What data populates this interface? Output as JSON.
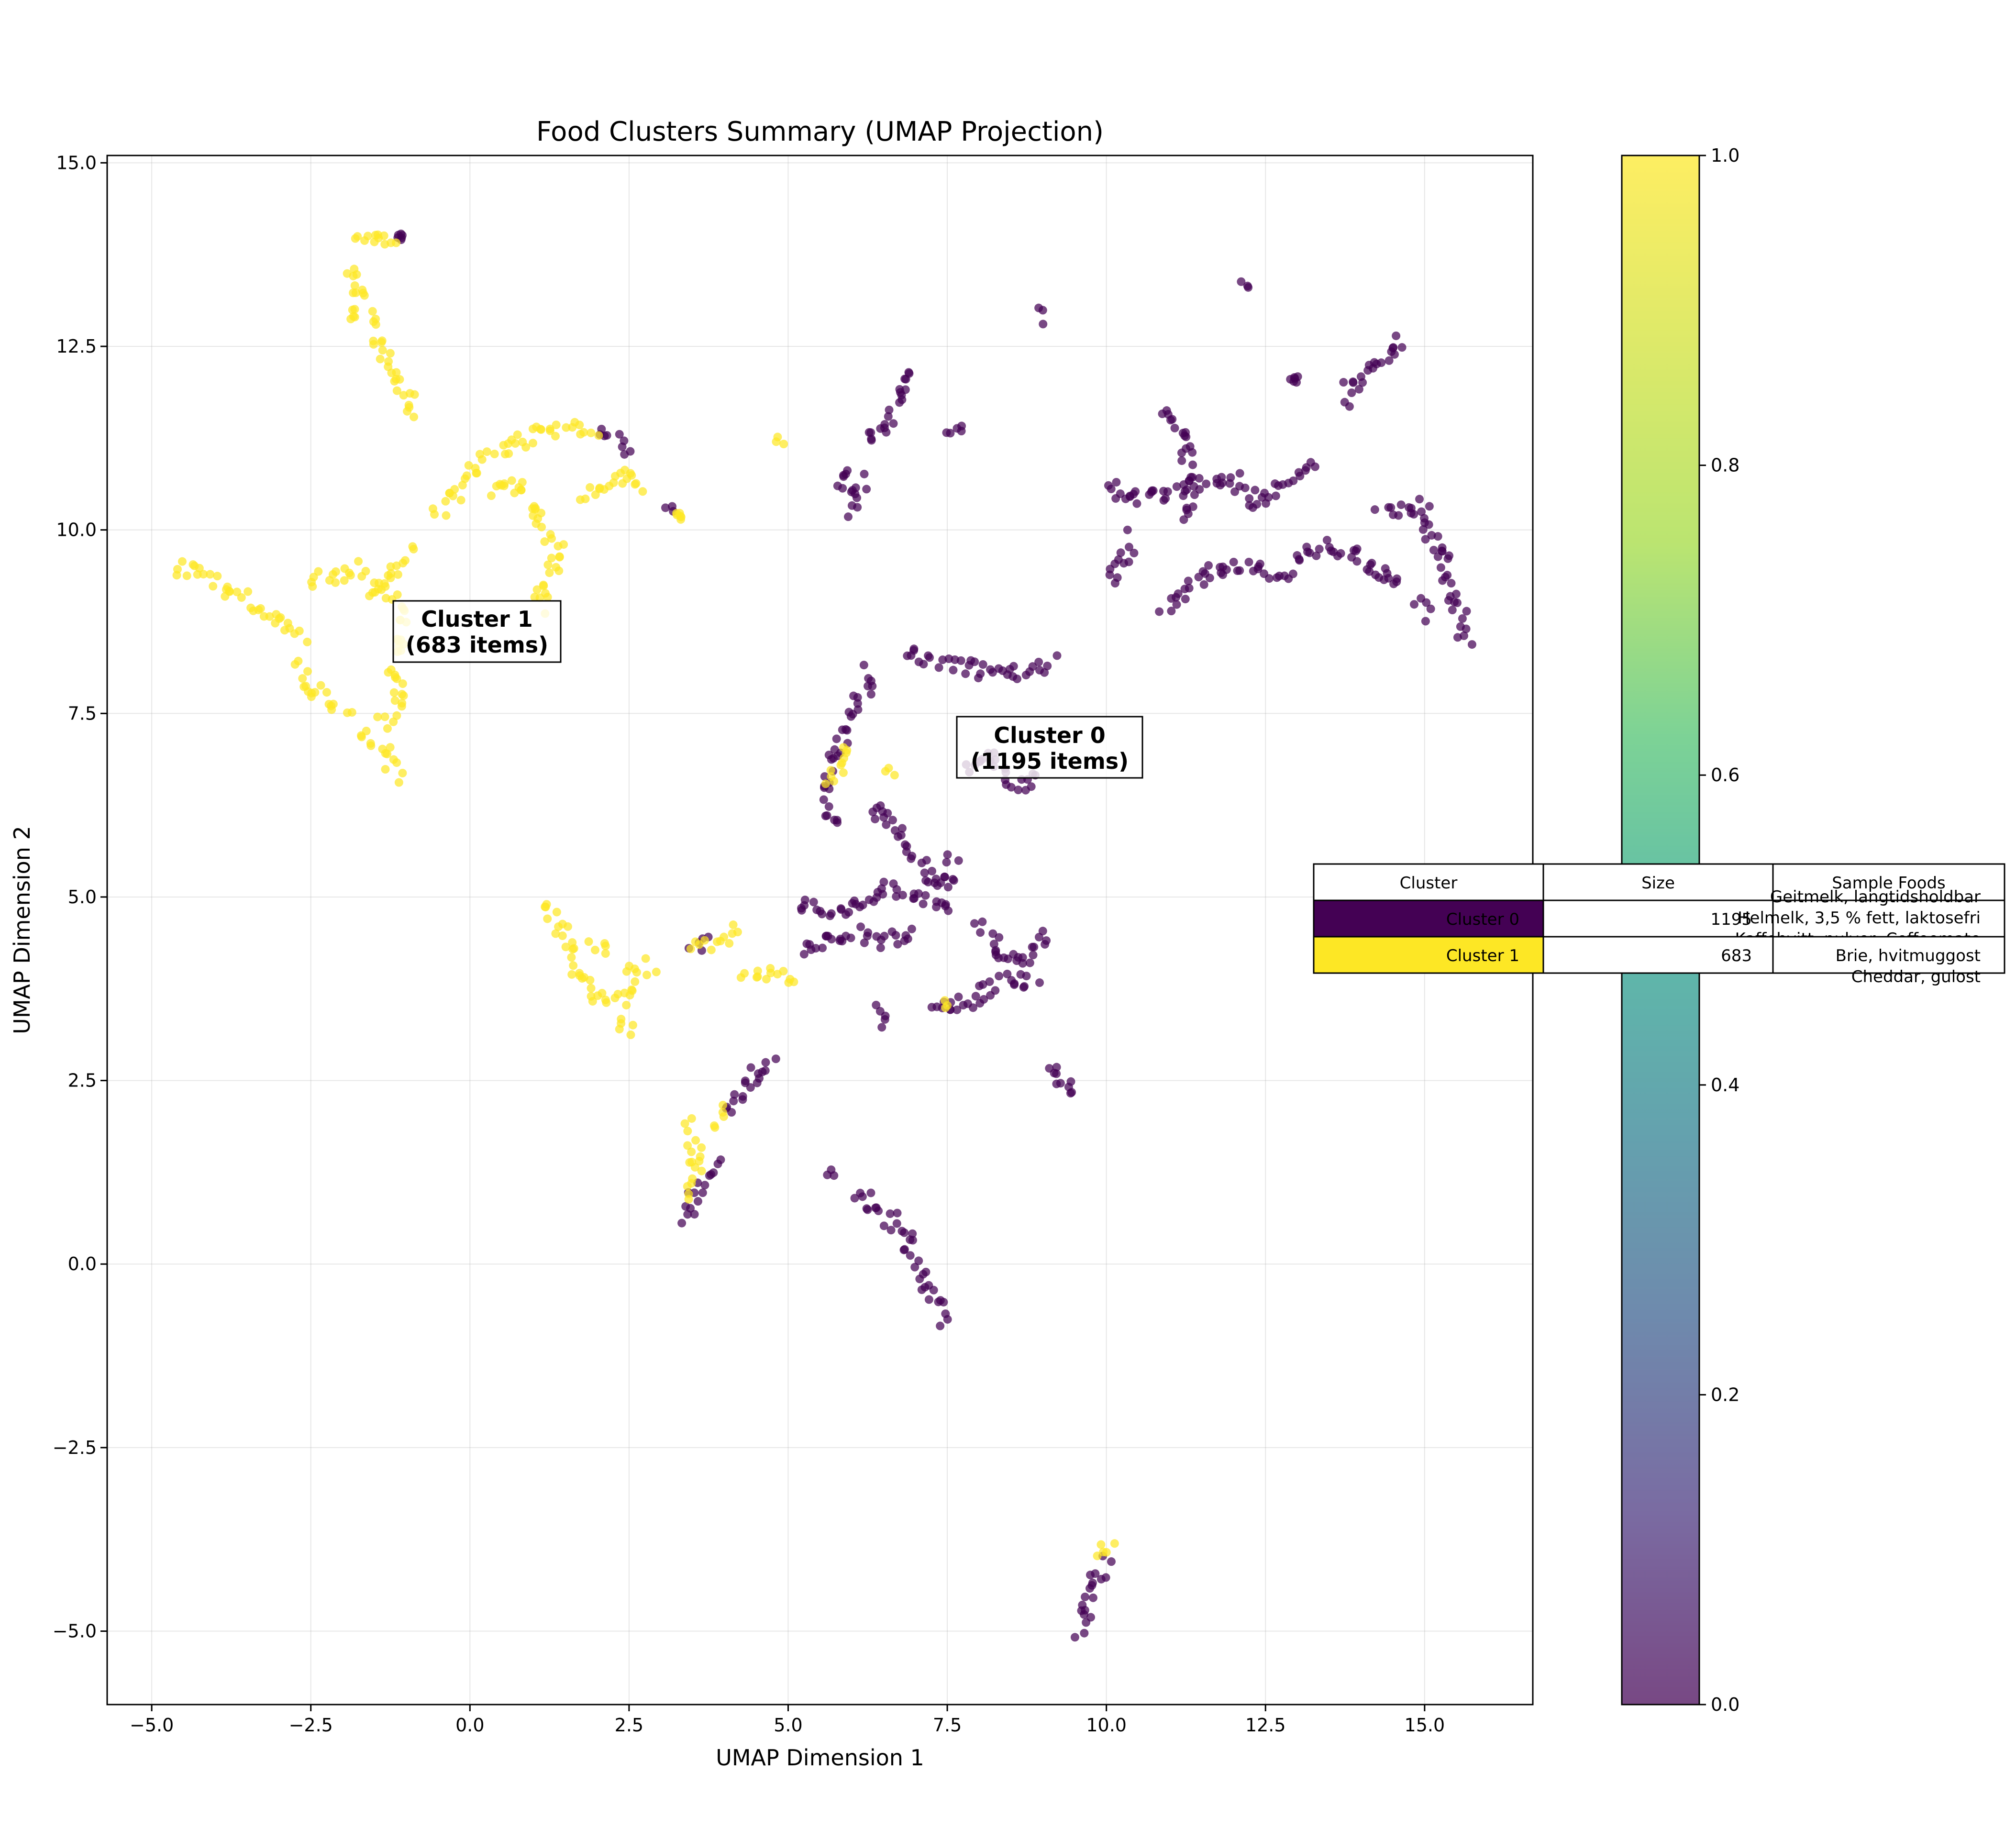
{
  "chart_data": {
    "type": "scatter",
    "title": "Food Clusters Summary (UMAP Projection)",
    "xlabel": "UMAP Dimension 1",
    "ylabel": "UMAP Dimension 2",
    "xlim": [
      -5.7,
      16.7
    ],
    "ylim": [
      -6.0,
      15.1
    ],
    "xticks": [
      -5.0,
      -2.5,
      0.0,
      2.5,
      5.0,
      7.5,
      10.0,
      12.5,
      15.0
    ],
    "xtick_labels": [
      "−5.0",
      "−2.5",
      "0.0",
      "2.5",
      "5.0",
      "7.5",
      "10.0",
      "12.5",
      "15.0"
    ],
    "yticks": [
      -5.0,
      -2.5,
      0.0,
      2.5,
      5.0,
      7.5,
      10.0,
      12.5,
      15.0
    ],
    "ytick_labels": [
      "−5.0",
      "−2.5",
      "0.0",
      "2.5",
      "5.0",
      "7.5",
      "10.0",
      "12.5",
      "15.0"
    ],
    "grid": true,
    "colormap": "viridis",
    "colorbar": {
      "ticks": [
        0.0,
        0.2,
        0.4,
        0.6,
        0.8,
        1.0
      ],
      "tick_labels": [
        "0.0",
        "0.2",
        "0.4",
        "0.6",
        "0.8",
        "1.0"
      ]
    },
    "series": [
      {
        "cluster": 0,
        "color": "#440154",
        "paths": [
          [
            [
              6.3,
              8.1
            ],
            [
              6.0,
              7.4
            ],
            [
              5.7,
              6.9
            ],
            [
              5.6,
              6.4
            ],
            [
              5.7,
              5.9
            ]
          ],
          [
            [
              6.9,
              8.3
            ],
            [
              7.5,
              8.2
            ],
            [
              8.2,
              8.05
            ],
            [
              8.8,
              8.05
            ],
            [
              9.2,
              8.2
            ]
          ],
          [
            [
              6.3,
              6.3
            ],
            [
              6.6,
              6.0
            ],
            [
              6.9,
              5.6
            ],
            [
              7.2,
              5.3
            ],
            [
              7.5,
              5.1
            ],
            [
              7.6,
              5.6
            ]
          ],
          [
            [
              7.8,
              6.7
            ],
            [
              8.2,
              6.9
            ],
            [
              8.6,
              6.5
            ],
            [
              9.0,
              6.6
            ]
          ],
          [
            [
              5.1,
              4.9
            ],
            [
              5.6,
              4.8
            ],
            [
              6.1,
              4.9
            ],
            [
              6.6,
              5.1
            ],
            [
              7.1,
              5.0
            ],
            [
              7.6,
              4.8
            ]
          ],
          [
            [
              5.2,
              4.2
            ],
            [
              5.6,
              4.4
            ],
            [
              6.1,
              4.5
            ],
            [
              6.6,
              4.4
            ],
            [
              7.0,
              4.5
            ]
          ],
          [
            [
              7.2,
              3.6
            ],
            [
              7.7,
              3.55
            ],
            [
              8.1,
              3.7
            ],
            [
              8.5,
              3.9
            ],
            [
              8.9,
              3.8
            ]
          ],
          [
            [
              8.0,
              4.6
            ],
            [
              8.3,
              4.3
            ],
            [
              8.6,
              4.0
            ],
            [
              8.9,
              4.4
            ],
            [
              9.1,
              4.5
            ]
          ],
          [
            [
              6.4,
              3.3
            ],
            [
              6.5,
              3.6
            ]
          ],
          [
            [
              4.0,
              2.1
            ],
            [
              4.4,
              2.5
            ],
            [
              4.8,
              2.85
            ]
          ],
          [
            [
              3.4,
              0.6
            ],
            [
              3.6,
              1.1
            ],
            [
              3.9,
              1.4
            ]
          ],
          [
            [
              5.6,
              1.25
            ],
            [
              5.8,
              1.2
            ]
          ],
          [
            [
              6.1,
              1.0
            ],
            [
              6.4,
              0.7
            ],
            [
              6.8,
              0.5
            ],
            [
              7.0,
              0.0
            ],
            [
              7.3,
              -0.5
            ],
            [
              7.5,
              -0.85
            ]
          ],
          [
            [
              9.1,
              2.7
            ],
            [
              9.3,
              2.5
            ],
            [
              9.55,
              2.3
            ]
          ],
          [
            [
              9.55,
              -5.05
            ],
            [
              9.7,
              -4.7
            ],
            [
              9.85,
              -4.3
            ],
            [
              10.0,
              -3.95
            ]
          ],
          [
            [
              6.2,
              11.3
            ],
            [
              6.5,
              11.35
            ],
            [
              6.9,
              12.05
            ],
            [
              7.0,
              12.1
            ]
          ],
          [
            [
              7.5,
              11.3
            ],
            [
              7.8,
              11.35
            ]
          ],
          [
            [
              5.8,
              10.85
            ],
            [
              5.95,
              10.5
            ],
            [
              6.05,
              10.2
            ]
          ],
          [
            [
              6.0,
              10.6
            ],
            [
              6.3,
              10.7
            ]
          ],
          [
            [
              9.0,
              12.85
            ],
            [
              9.05,
              12.95
            ]
          ],
          [
            [
              12.1,
              13.3
            ],
            [
              12.25,
              13.15
            ]
          ],
          [
            [
              12.95,
              12.05
            ]
          ],
          [
            [
              13.8,
              12.0
            ],
            [
              14.1,
              12.2
            ],
            [
              14.4,
              12.4
            ],
            [
              14.7,
              12.65
            ]
          ],
          [
            [
              13.8,
              11.7
            ],
            [
              14.0,
              11.85
            ]
          ],
          [
            [
              10.0,
              10.6
            ],
            [
              10.5,
              10.4
            ],
            [
              11.0,
              10.5
            ],
            [
              11.5,
              10.6
            ],
            [
              12.0,
              10.7
            ],
            [
              12.4,
              10.3
            ],
            [
              12.8,
              10.6
            ],
            [
              13.3,
              10.9
            ]
          ],
          [
            [
              10.9,
              11.7
            ],
            [
              11.2,
              11.3
            ],
            [
              11.3,
              10.6
            ],
            [
              11.2,
              10.1
            ]
          ],
          [
            [
              10.4,
              9.9
            ],
            [
              10.2,
              9.5
            ],
            [
              10.0,
              9.3
            ]
          ],
          [
            [
              10.9,
              8.95
            ],
            [
              11.4,
              9.3
            ],
            [
              11.9,
              9.5
            ],
            [
              12.4,
              9.45
            ],
            [
              12.9,
              9.4
            ]
          ],
          [
            [
              12.9,
              9.5
            ],
            [
              13.4,
              9.8
            ],
            [
              13.9,
              9.7
            ],
            [
              14.3,
              9.45
            ],
            [
              14.7,
              9.2
            ]
          ],
          [
            [
              14.3,
              10.3
            ],
            [
              14.7,
              10.25
            ],
            [
              14.9,
              10.35
            ]
          ],
          [
            [
              15.0,
              10.4
            ],
            [
              15.1,
              10.0
            ],
            [
              15.3,
              9.5
            ],
            [
              15.5,
              9.0
            ],
            [
              15.7,
              8.4
            ]
          ],
          [
            [
              14.9,
              9.0
            ],
            [
              15.1,
              8.8
            ]
          ],
          [
            [
              2.1,
              11.4
            ],
            [
              2.5,
              11.0
            ]
          ],
          [
            [
              3.15,
              10.3
            ],
            [
              3.2,
              10.2
            ]
          ],
          [
            [
              -1.1,
              14.0
            ]
          ],
          [
            [
              3.5,
              4.3
            ],
            [
              3.8,
              4.4
            ]
          ]
        ]
      },
      {
        "cluster": 1,
        "color": "#fde725",
        "paths": [
          [
            [
              -1.8,
              14.05
            ],
            [
              -1.6,
              13.9
            ],
            [
              -1.3,
              14.0
            ],
            [
              -1.15,
              13.95
            ]
          ],
          [
            [
              -1.9,
              13.6
            ],
            [
              -1.7,
              13.3
            ],
            [
              -1.8,
              12.95
            ],
            [
              -2.0,
              13.0
            ]
          ],
          [
            [
              -1.6,
              12.9
            ],
            [
              -1.45,
              12.6
            ],
            [
              -1.3,
              12.2
            ],
            [
              -1.0,
              11.9
            ],
            [
              -0.8,
              11.5
            ]
          ],
          [
            [
              -0.5,
              10.2
            ],
            [
              0.0,
              10.8
            ],
            [
              0.5,
              11.1
            ],
            [
              1.0,
              11.3
            ],
            [
              1.5,
              11.35
            ],
            [
              2.0,
              11.4
            ]
          ],
          [
            [
              0.3,
              10.5
            ],
            [
              0.8,
              10.6
            ],
            [
              1.2,
              10.0
            ],
            [
              1.4,
              9.7
            ],
            [
              1.1,
              9.1
            ],
            [
              1.2,
              8.85
            ]
          ],
          [
            [
              1.8,
              10.5
            ],
            [
              2.2,
              10.6
            ],
            [
              2.5,
              10.8
            ],
            [
              2.8,
              10.6
            ]
          ],
          [
            [
              -0.9,
              9.7
            ],
            [
              -1.3,
              9.4
            ],
            [
              -1.6,
              9.0
            ]
          ],
          [
            [
              -4.6,
              9.5
            ],
            [
              -4.2,
              9.4
            ],
            [
              -3.8,
              9.2
            ],
            [
              -3.4,
              9.0
            ],
            [
              -3.0,
              8.8
            ],
            [
              -2.6,
              8.5
            ]
          ],
          [
            [
              -2.7,
              8.2
            ],
            [
              -2.6,
              7.9
            ],
            [
              -2.3,
              7.7
            ],
            [
              -1.9,
              7.5
            ]
          ],
          [
            [
              -2.5,
              9.3
            ],
            [
              -2.0,
              9.4
            ],
            [
              -1.6,
              9.5
            ]
          ],
          [
            [
              -1.4,
              9.2
            ],
            [
              -1.1,
              9.0
            ],
            [
              -1.1,
              8.6
            ],
            [
              -1.2,
              8.2
            ],
            [
              -1.1,
              7.6
            ],
            [
              -1.4,
              7.3
            ]
          ],
          [
            [
              -1.7,
              7.2
            ],
            [
              -1.3,
              6.9
            ],
            [
              -1.1,
              6.6
            ]
          ],
          [
            [
              1.2,
              4.9
            ],
            [
              1.5,
              4.5
            ],
            [
              1.7,
              3.9
            ],
            [
              2.1,
              3.6
            ],
            [
              2.5,
              3.6
            ],
            [
              2.6,
              4.0
            ],
            [
              2.9,
              4.1
            ]
          ],
          [
            [
              1.9,
              4.3
            ],
            [
              2.2,
              4.35
            ]
          ],
          [
            [
              2.4,
              3.4
            ],
            [
              2.5,
              3.1
            ]
          ],
          [
            [
              3.5,
              4.35
            ],
            [
              3.9,
              4.4
            ],
            [
              4.2,
              4.6
            ]
          ],
          [
            [
              4.3,
              3.9
            ],
            [
              4.8,
              4.0
            ],
            [
              5.1,
              3.9
            ]
          ],
          [
            [
              5.6,
              6.6
            ],
            [
              5.9,
              6.9
            ],
            [
              5.8,
              7.1
            ]
          ],
          [
            [
              6.6,
              6.7
            ],
            [
              6.7,
              6.8
            ]
          ],
          [
            [
              7.4,
              3.45
            ],
            [
              7.5,
              3.5
            ]
          ],
          [
            [
              3.4,
              1.9
            ],
            [
              3.6,
              1.4
            ],
            [
              3.5,
              1.1
            ],
            [
              3.4,
              0.9
            ]
          ],
          [
            [
              3.9,
              1.9
            ],
            [
              4.1,
              2.1
            ]
          ],
          [
            [
              3.3,
              10.2
            ]
          ],
          [
            [
              4.8,
              11.2
            ],
            [
              4.9,
              11.25
            ]
          ],
          [
            [
              9.9,
              -4.0
            ],
            [
              10.1,
              -3.75
            ]
          ]
        ]
      }
    ],
    "annotations": [
      {
        "label": [
          "Cluster 1",
          "(683 items)"
        ],
        "x": 0.1,
        "y": 8.6
      },
      {
        "label": [
          "Cluster 0",
          "(1195 items)"
        ],
        "x": 9.0,
        "y": 7.0
      }
    ],
    "table": {
      "headers": [
        "Cluster",
        "Size",
        "Sample Foods"
      ],
      "rows": [
        {
          "cluster": "Cluster 0",
          "size": "1195",
          "color": "#440154",
          "foods": [
            "Geitmelk, langtidsholdbar",
            "Helmelk, 3,5 % fett, laktosefri",
            "Kaffehvitt, pulver, Coffeemate"
          ]
        },
        {
          "cluster": "Cluster 1",
          "size": "683",
          "color": "#fde725",
          "foods": [
            "Brie, hvitmuggost",
            "Cheddar, gulost"
          ]
        }
      ]
    }
  }
}
